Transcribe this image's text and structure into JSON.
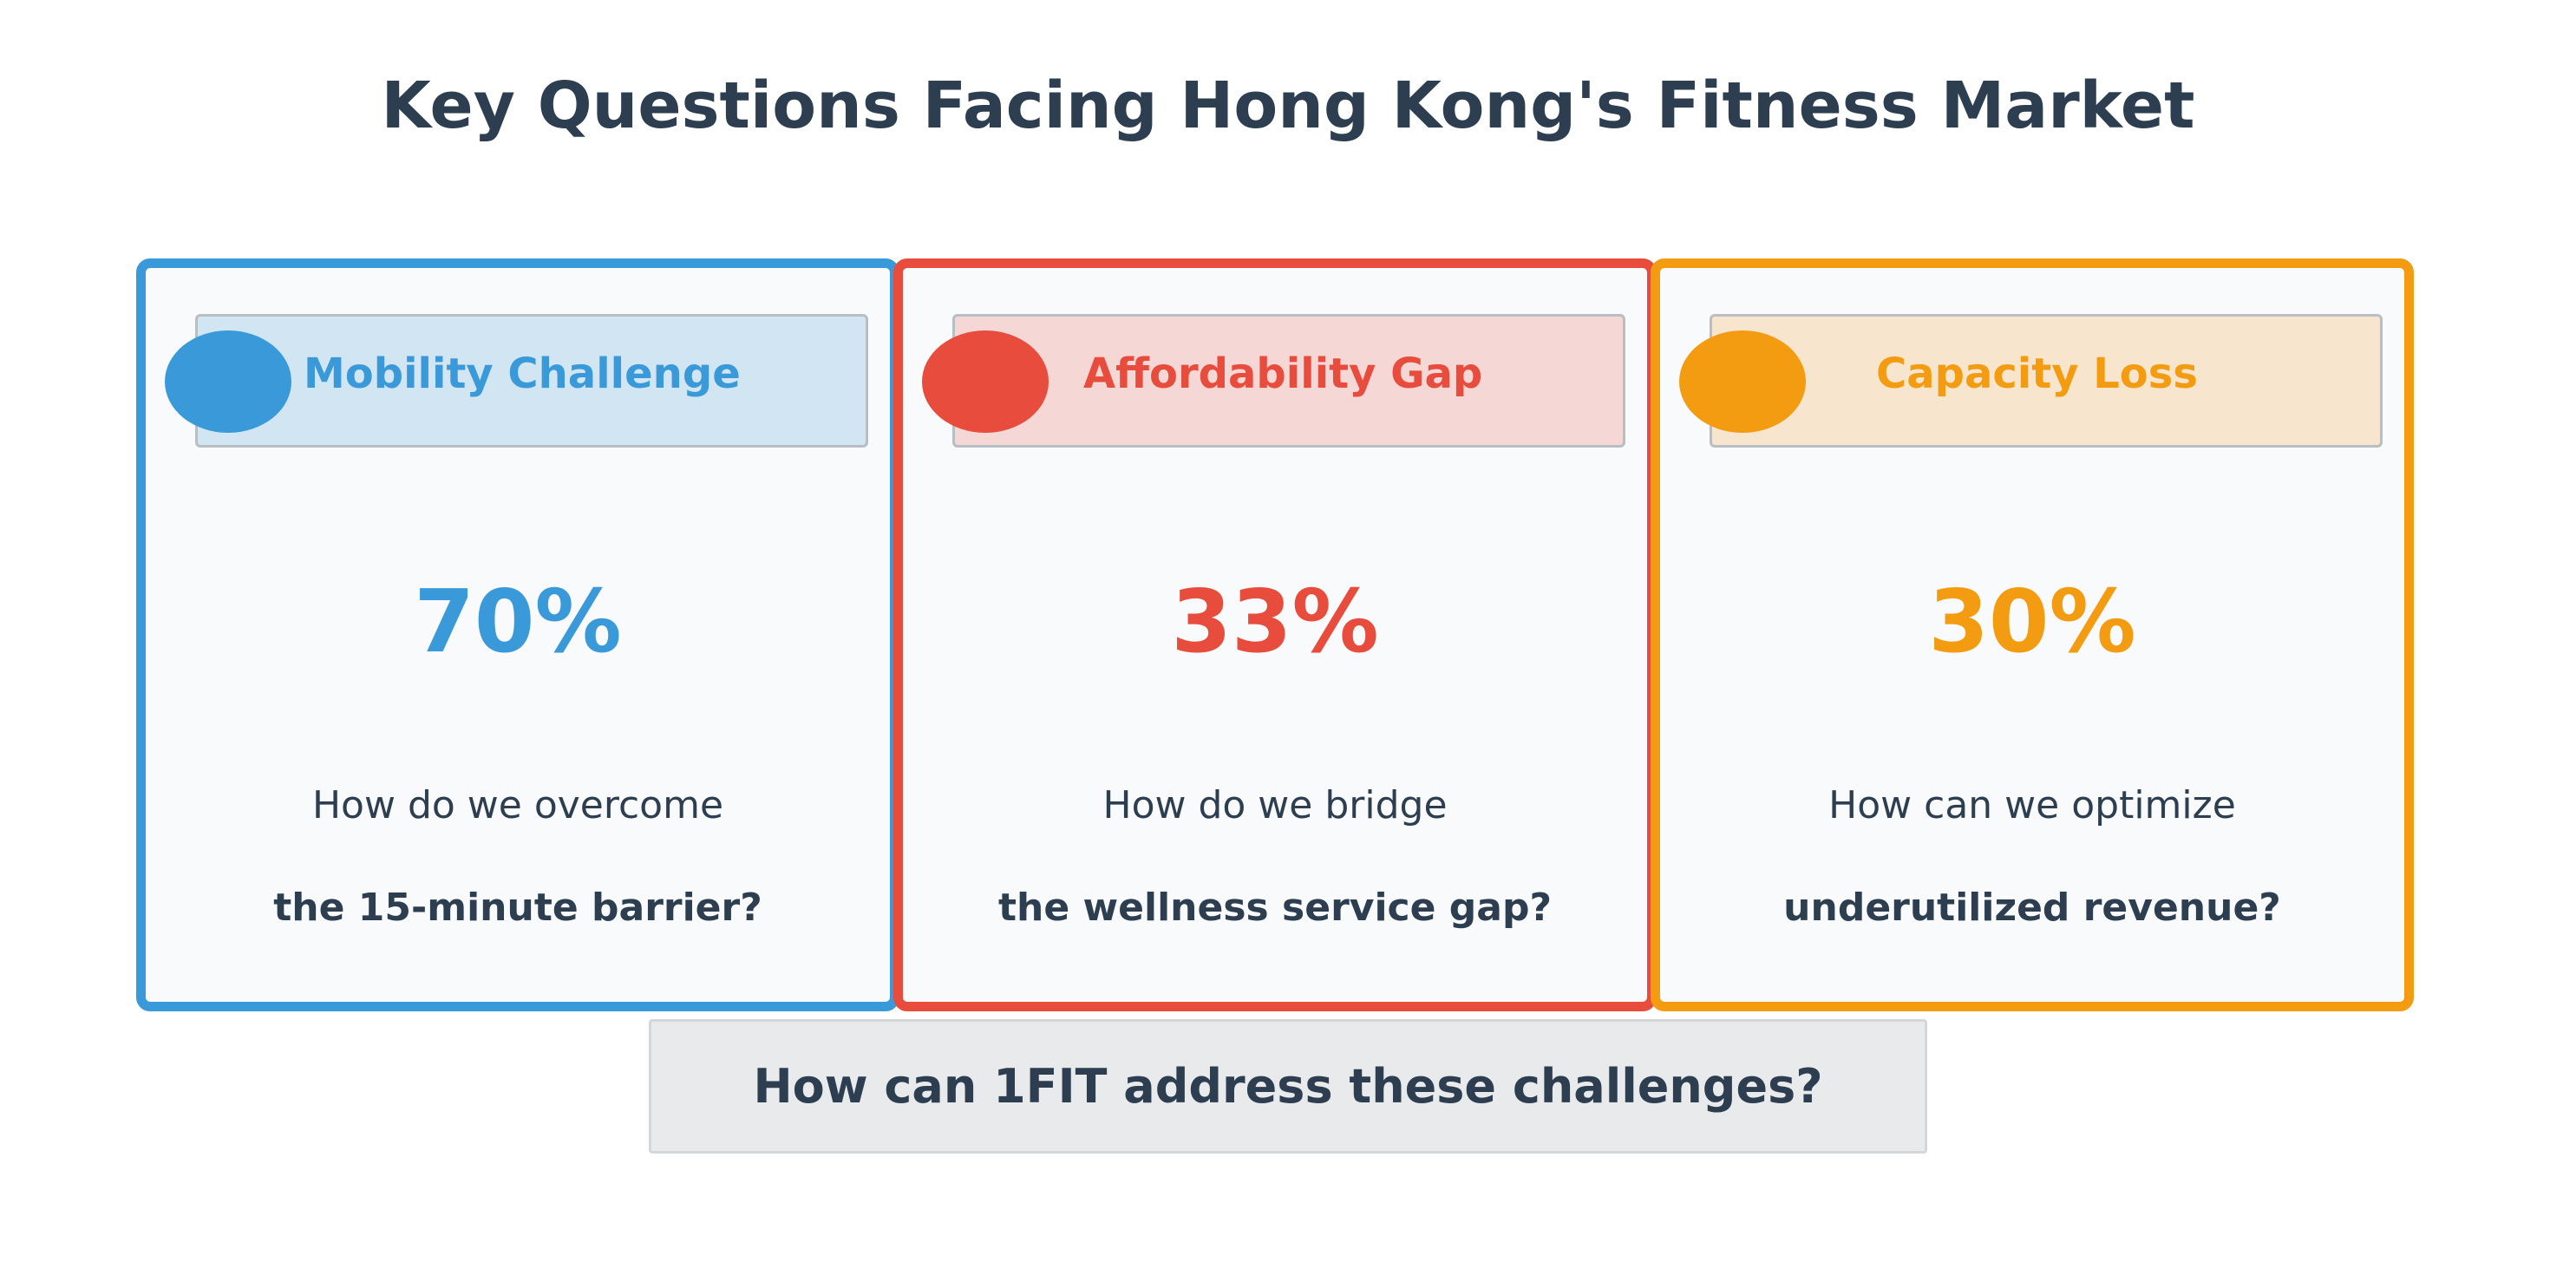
{
  "title": "Key Questions Facing Hong Kong's Fitness Market",
  "cards": [
    {
      "label": "Mobility Challenge",
      "icon": "",
      "icon_name": "mobility-icon",
      "stat": "70%",
      "question_line1": "How do we overcome",
      "question_line2": "the 15-minute barrier?",
      "color": "#3a9ad9"
    },
    {
      "label": "Affordability Gap",
      "icon": "",
      "icon_name": "affordability-icon",
      "stat": "33%",
      "question_line1": "How do we bridge",
      "question_line2": "the wellness service gap?",
      "color": "#e74c3c"
    },
    {
      "label": "Capacity Loss",
      "icon": "",
      "icon_name": "capacity-icon",
      "stat": "30%",
      "question_line1": "How can we optimize",
      "question_line2": "underutilized revenue?",
      "color": "#f39c12"
    }
  ],
  "footer": {
    "question": "How can 1FIT address these challenges?"
  },
  "colors": {
    "title_text": "#2c3e50",
    "blue": "#3a9ad9",
    "red": "#e74c3c",
    "orange": "#f39c12"
  }
}
